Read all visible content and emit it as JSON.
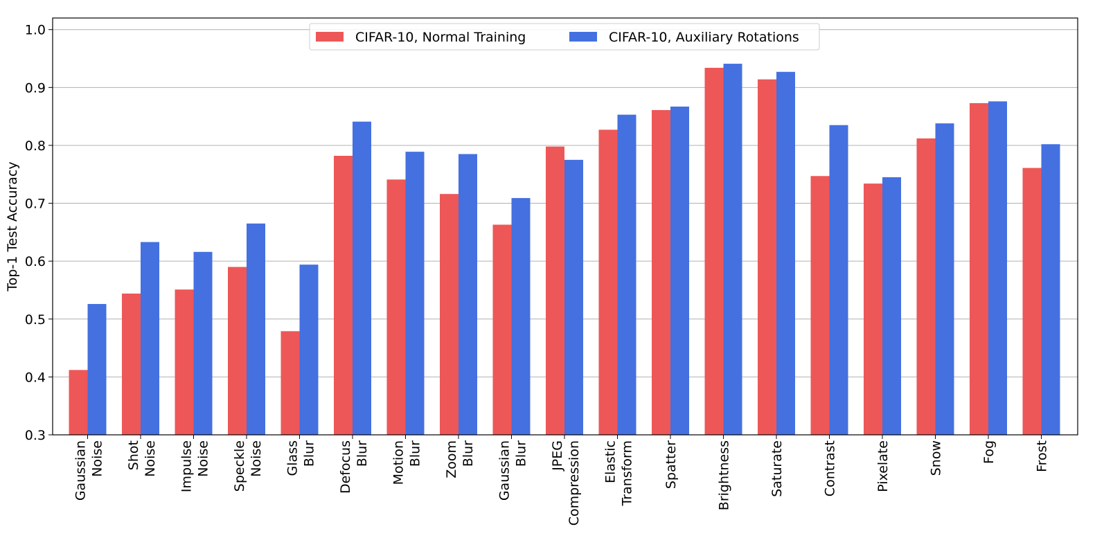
{
  "chart_data": {
    "type": "bar",
    "title": "",
    "xlabel": "",
    "ylabel": "Top-1 Test Accuracy",
    "ylim": [
      0.3,
      1.02
    ],
    "yticks": [
      "0.3",
      "0.4",
      "0.5",
      "0.6",
      "0.7",
      "0.8",
      "0.9",
      "1.0"
    ],
    "grid": "horizontal",
    "legend_position": "top-center",
    "categories": [
      [
        "Gaussian",
        "Noise"
      ],
      [
        "Shot",
        "Noise"
      ],
      [
        "Impulse",
        "Noise"
      ],
      [
        "Speckle",
        "Noise"
      ],
      [
        "Glass",
        "Blur"
      ],
      [
        "Defocus",
        "Blur"
      ],
      [
        "Motion",
        "Blur"
      ],
      [
        "Zoom",
        "Blur"
      ],
      [
        "Gaussian",
        "Blur"
      ],
      [
        "JPEG",
        "Compression"
      ],
      [
        "Elastic",
        "Transform"
      ],
      [
        "Spatter"
      ],
      [
        "Brightness"
      ],
      [
        "Saturate"
      ],
      [
        "Contrast"
      ],
      [
        "Pixelate"
      ],
      [
        "Snow"
      ],
      [
        "Fog"
      ],
      [
        "Frost"
      ]
    ],
    "series": [
      {
        "name": "CIFAR-10, Normal Training",
        "color": "#ee5757",
        "values": [
          0.412,
          0.544,
          0.551,
          0.59,
          0.479,
          0.782,
          0.741,
          0.716,
          0.663,
          0.798,
          0.827,
          0.861,
          0.934,
          0.914,
          0.747,
          0.734,
          0.812,
          0.873,
          0.761
        ]
      },
      {
        "name": "CIFAR-10, Auxiliary Rotations",
        "color": "#4470e0",
        "values": [
          0.526,
          0.633,
          0.616,
          0.665,
          0.594,
          0.841,
          0.789,
          0.785,
          0.709,
          0.775,
          0.853,
          0.867,
          0.941,
          0.927,
          0.835,
          0.745,
          0.838,
          0.876,
          0.802
        ]
      }
    ]
  }
}
